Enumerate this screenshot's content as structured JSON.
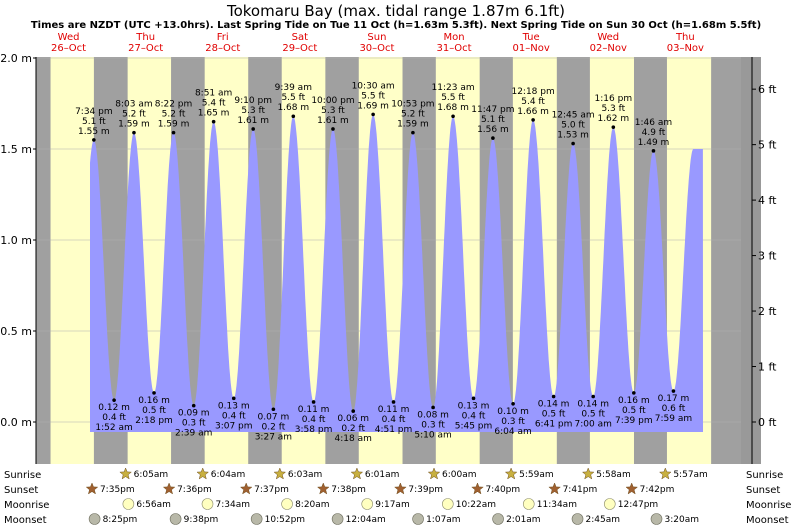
{
  "header": {
    "title": "Tokomaru Bay (max. tidal range 1.87m 6.1ft)",
    "subtitle": "Times are NZDT (UTC +13.0hrs). Last Spring Tide on Tue 11 Oct (h=1.63m 5.3ft). Next Spring Tide on Sun 30 Oct (h=1.68m 5.5ft)"
  },
  "days": [
    {
      "weekday": "Wed",
      "date": "26–Oct"
    },
    {
      "weekday": "Thu",
      "date": "27–Oct"
    },
    {
      "weekday": "Fri",
      "date": "28–Oct"
    },
    {
      "weekday": "Sat",
      "date": "29–Oct"
    },
    {
      "weekday": "Sun",
      "date": "30–Oct"
    },
    {
      "weekday": "Mon",
      "date": "31–Oct"
    },
    {
      "weekday": "Tue",
      "date": "01–Nov"
    },
    {
      "weekday": "Wed",
      "date": "02–Nov"
    },
    {
      "weekday": "Thu",
      "date": "03–Nov"
    }
  ],
  "astro": {
    "row_labels": [
      "Sunrise",
      "Sunset",
      "Moonrise",
      "Moonset"
    ],
    "sunrise": [
      "6:05am",
      "6:04am",
      "6:03am",
      "6:01am",
      "6:00am",
      "5:59am",
      "5:58am",
      "5:57am"
    ],
    "sunset": [
      "7:35pm",
      "7:36pm",
      "7:37pm",
      "7:38pm",
      "7:39pm",
      "7:40pm",
      "7:41pm",
      "7:42pm"
    ],
    "moonrise": [
      "6:56am",
      "7:34am",
      "8:20am",
      "9:17am",
      "10:22am",
      "11:34am",
      "12:47pm"
    ],
    "moonset": [
      "8:25pm",
      "9:38pm",
      "10:52pm",
      "12:04am",
      "1:07am",
      "2:01am",
      "2:45am",
      "3:20am"
    ]
  },
  "colors": {
    "day_band": "#ffffc8",
    "night_band": "#a0a0a0",
    "tide_fill": "#9999ff",
    "day_label": "#e00000",
    "sun_star": "#c8b040",
    "sunset_star": "#a06030",
    "moonrise_disc": "#ffffc0",
    "moonset_disc": "#b8b8a8"
  },
  "chart_data": {
    "type": "area",
    "title": "Tokomaru Bay (max. tidal range 1.87m 6.1ft)",
    "y_left_unit": "m",
    "y_right_unit": "ft",
    "ylim_m": [
      -0.06,
      2.0
    ],
    "left_ticks": [
      "2.0 m",
      "1.5 m",
      "1.0 m",
      "0.5 m",
      "0.0 m"
    ],
    "right_ticks": [
      "6 ft",
      "5 ft",
      "4 ft",
      "3 ft",
      "2 ft",
      "1 ft",
      "0 ft"
    ],
    "x_start": "26 Oct 00:00",
    "x_end": "03 Nov 22:00",
    "extremes": [
      {
        "type": "high",
        "day": 0,
        "time": "7:34 pm",
        "m": 1.55,
        "ft": "5.1 ft"
      },
      {
        "type": "low",
        "day": 1,
        "time": "1:52 am",
        "m": 0.12,
        "ft": "0.4 ft"
      },
      {
        "type": "high",
        "day": 1,
        "time": "8:03 am",
        "m": 1.59,
        "ft": "5.2 ft"
      },
      {
        "type": "low",
        "day": 1,
        "time": "2:18 pm",
        "m": 0.16,
        "ft": "0.5 ft"
      },
      {
        "type": "high",
        "day": 1,
        "time": "8:22 pm",
        "m": 1.59,
        "ft": "5.2 ft"
      },
      {
        "type": "low",
        "day": 2,
        "time": "2:39 am",
        "m": 0.09,
        "ft": "0.3 ft"
      },
      {
        "type": "high",
        "day": 2,
        "time": "8:51 am",
        "m": 1.65,
        "ft": "5.4 ft"
      },
      {
        "type": "low",
        "day": 2,
        "time": "3:07 pm",
        "m": 0.13,
        "ft": "0.4 ft"
      },
      {
        "type": "high",
        "day": 2,
        "time": "9:10 pm",
        "m": 1.61,
        "ft": "5.3 ft"
      },
      {
        "type": "low",
        "day": 3,
        "time": "3:27 am",
        "m": 0.07,
        "ft": "0.2 ft"
      },
      {
        "type": "high",
        "day": 3,
        "time": "9:39 am",
        "m": 1.68,
        "ft": "5.5 ft"
      },
      {
        "type": "low",
        "day": 3,
        "time": "3:58 pm",
        "m": 0.11,
        "ft": "0.4 ft"
      },
      {
        "type": "high",
        "day": 3,
        "time": "10:00 pm",
        "m": 1.61,
        "ft": "5.3 ft"
      },
      {
        "type": "low",
        "day": 4,
        "time": "4:18 am",
        "m": 0.06,
        "ft": "0.2 ft"
      },
      {
        "type": "high",
        "day": 4,
        "time": "10:30 am",
        "m": 1.69,
        "ft": "5.5 ft"
      },
      {
        "type": "low",
        "day": 4,
        "time": "4:51 pm",
        "m": 0.11,
        "ft": "0.4 ft"
      },
      {
        "type": "high",
        "day": 4,
        "time": "10:53 pm",
        "m": 1.59,
        "ft": "5.2 ft"
      },
      {
        "type": "low",
        "day": 5,
        "time": "5:10 am",
        "m": 0.08,
        "ft": "0.3 ft"
      },
      {
        "type": "high",
        "day": 5,
        "time": "11:23 am",
        "m": 1.68,
        "ft": "5.5 ft"
      },
      {
        "type": "low",
        "day": 5,
        "time": "5:45 pm",
        "m": 0.13,
        "ft": "0.4 ft"
      },
      {
        "type": "high",
        "day": 5,
        "time": "11:47 pm",
        "m": 1.56,
        "ft": "5.1 ft"
      },
      {
        "type": "low",
        "day": 6,
        "time": "6:04 am",
        "m": 0.1,
        "ft": "0.3 ft"
      },
      {
        "type": "high",
        "day": 6,
        "time": "12:18 pm",
        "m": 1.66,
        "ft": "5.4 ft"
      },
      {
        "type": "low",
        "day": 6,
        "time": "6:41 pm",
        "m": 0.14,
        "ft": "0.5 ft"
      },
      {
        "type": "high",
        "day": 7,
        "time": "12:45 am",
        "m": 1.53,
        "ft": "5.0 ft"
      },
      {
        "type": "low",
        "day": 7,
        "time": "7:00 am",
        "m": 0.14,
        "ft": "0.5 ft"
      },
      {
        "type": "high",
        "day": 7,
        "time": "1:16 pm",
        "m": 1.62,
        "ft": "5.3 ft"
      },
      {
        "type": "low",
        "day": 7,
        "time": "7:39 pm",
        "m": 0.16,
        "ft": "0.5 ft"
      },
      {
        "type": "high",
        "day": 8,
        "time": "1:46 am",
        "m": 1.49,
        "ft": "4.9 ft"
      },
      {
        "type": "low",
        "day": 8,
        "time": "7:59 am",
        "m": 0.17,
        "ft": "0.6 ft"
      }
    ]
  }
}
